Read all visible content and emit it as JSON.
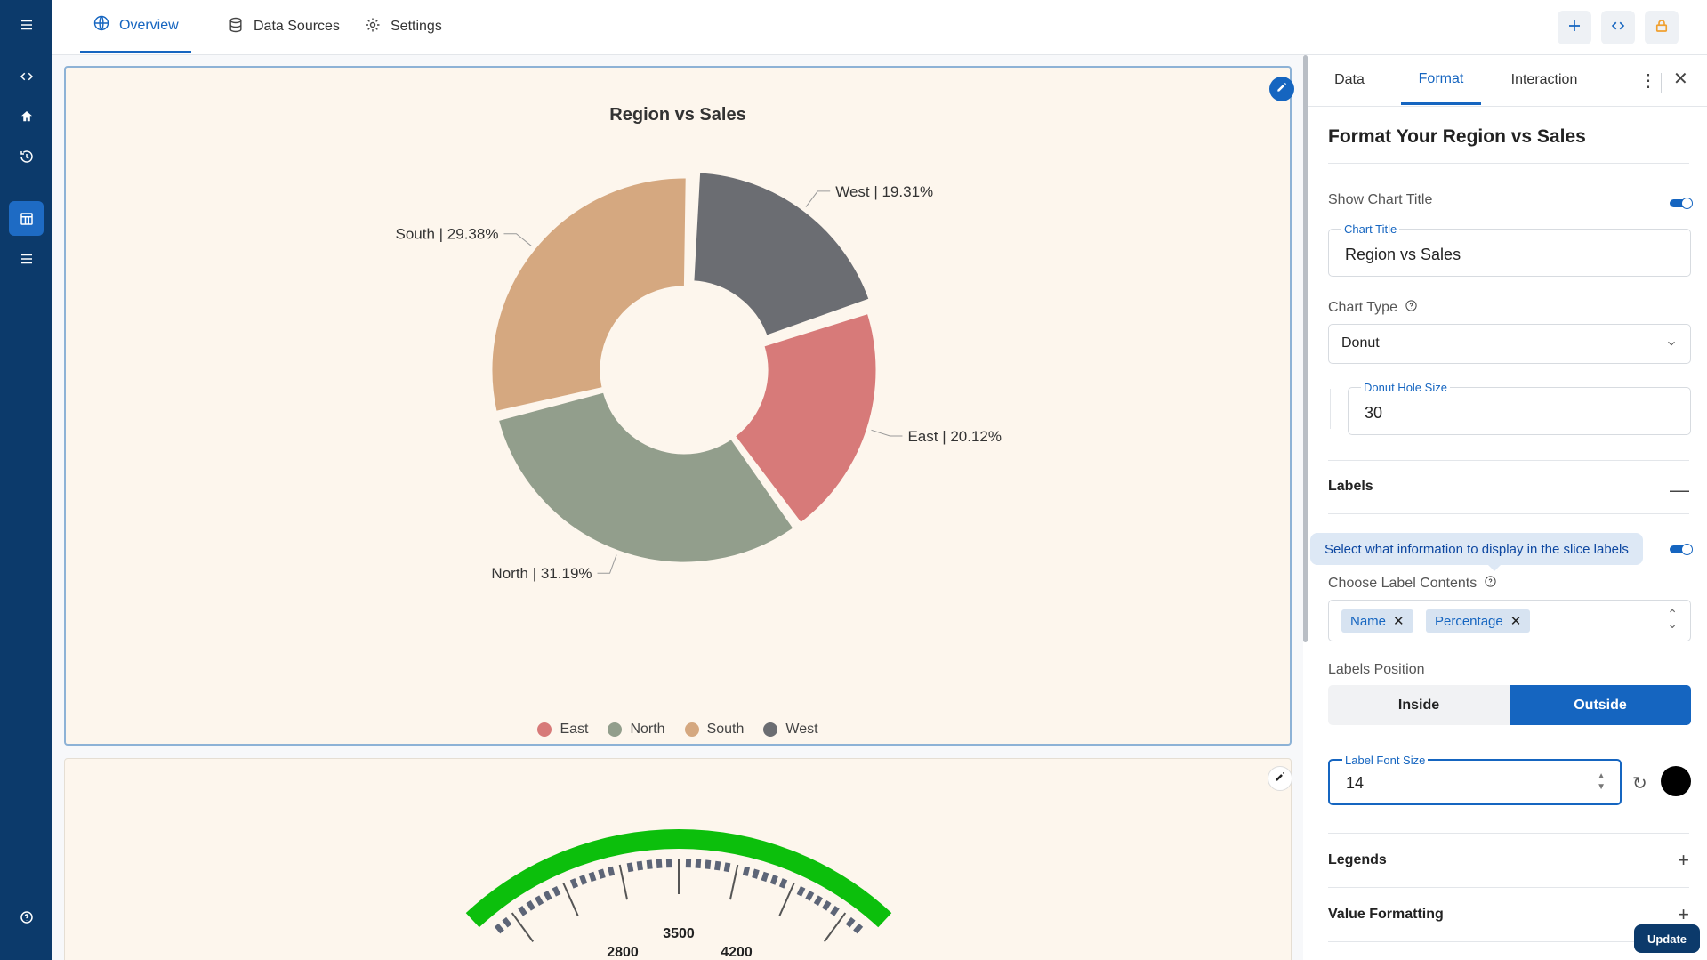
{
  "topbar": {
    "tabs": [
      {
        "label": "Overview",
        "icon": "globe-icon",
        "active": true
      },
      {
        "label": "Data Sources",
        "icon": "database-icon",
        "active": false
      },
      {
        "label": "Settings",
        "icon": "gear-icon",
        "active": false
      }
    ],
    "actions": [
      "plus-icon",
      "code-icon",
      "lock-icon"
    ]
  },
  "rail": {
    "icons": [
      "menu-icon",
      "code-icon",
      "home-icon",
      "history-icon",
      "dashboard-icon",
      "list-icon",
      "help-icon"
    ]
  },
  "chart_data": {
    "type": "pie",
    "variant": "donut",
    "title": "Region vs Sales",
    "categories": [
      "East",
      "North",
      "South",
      "West"
    ],
    "values": [
      20.12,
      31.19,
      29.38,
      19.31
    ],
    "labels": [
      "East | 20.12%",
      "North | 31.19%",
      "South | 29.38%",
      "West | 19.31%"
    ],
    "colors": [
      "#d77a79",
      "#929e8c",
      "#d5a880",
      "#6b6d72"
    ],
    "legend": "bottom",
    "label_position": "outside"
  },
  "gauge": {
    "ticks": [
      "2800",
      "3500",
      "4200"
    ],
    "color": "#0cbf0c"
  },
  "panel": {
    "tabs": [
      "Data",
      "Format",
      "Interaction"
    ],
    "active_tab": "Format",
    "heading": "Format Your Region vs Sales",
    "show_chart_title_label": "Show Chart Title",
    "chart_title_field_label": "Chart Title",
    "chart_title_value": "Region vs Sales",
    "chart_type_label": "Chart Type",
    "chart_type_value": "Donut",
    "donut_hole_label": "Donut Hole Size",
    "donut_hole_value": "30",
    "labels_section": "Labels",
    "tooltip": "Select what information to display in the slice labels",
    "label_contents_label": "Choose Label Contents",
    "chips": [
      "Name",
      "Percentage"
    ],
    "labels_position_label": "Labels Position",
    "position_options": [
      "Inside",
      "Outside"
    ],
    "active_position": "Outside",
    "font_size_label": "Label Font Size",
    "font_size_value": "14",
    "label_color": "#000000",
    "legends_section": "Legends",
    "value_formatting_section": "Value Formatting",
    "update_label": "Update"
  }
}
